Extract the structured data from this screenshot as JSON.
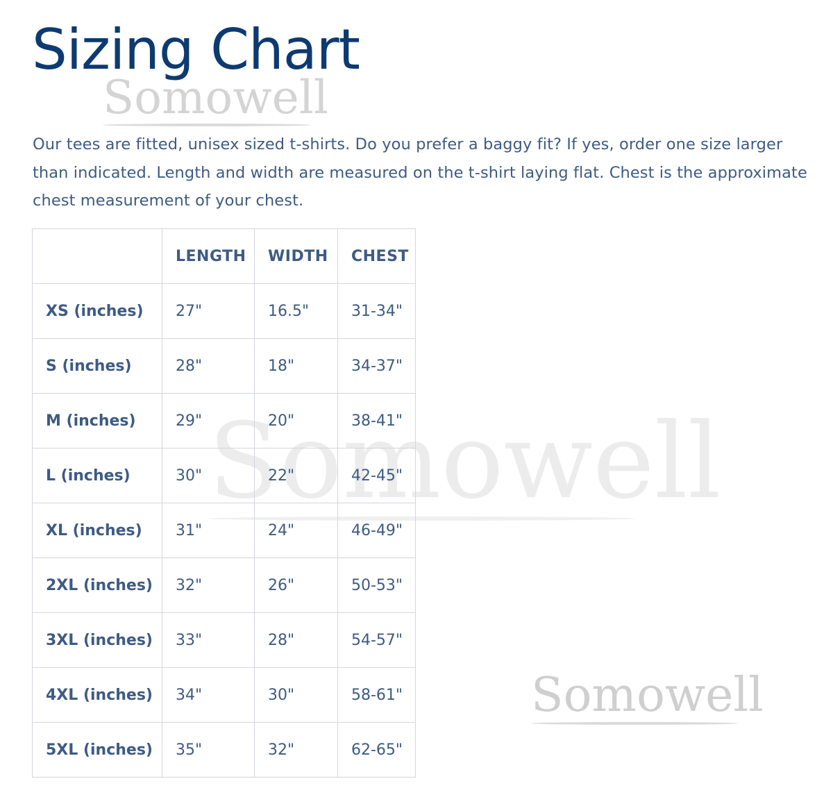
{
  "title": "Sizing Chart",
  "description": "Our tees are fitted, unisex sized t-shirts. Do you prefer a baggy fit? If yes, order one size larger than indicated. Length and width are measured on the t-shirt laying flat. Chest is the approximate chest measurement of your chest.",
  "watermark": "Somowell",
  "colors": {
    "title": "#0d3a70",
    "text": "#3e5b82",
    "border": "#d3d6dd",
    "watermark": "#d4d4d4"
  },
  "table": {
    "headers": [
      "",
      "LENGTH",
      "WIDTH",
      "CHEST"
    ],
    "rows": [
      [
        "XS (inches)",
        "27\"",
        "16.5\"",
        "31-34\""
      ],
      [
        "S (inches)",
        "28\"",
        "18\"",
        "34-37\""
      ],
      [
        "M (inches)",
        "29\"",
        "20\"",
        "38-41\""
      ],
      [
        "L (inches)",
        "30\"",
        "22\"",
        "42-45\""
      ],
      [
        "XL (inches)",
        "31\"",
        "24\"",
        "46-49\""
      ],
      [
        "2XL (inches)",
        "32\"",
        "26\"",
        "50-53\""
      ],
      [
        "3XL (inches)",
        "33\"",
        "28\"",
        "54-57\""
      ],
      [
        "4XL (inches)",
        "34\"",
        "30\"",
        "58-61\""
      ],
      [
        "5XL (inches)",
        "35\"",
        "32\"",
        "62-65\""
      ]
    ]
  }
}
